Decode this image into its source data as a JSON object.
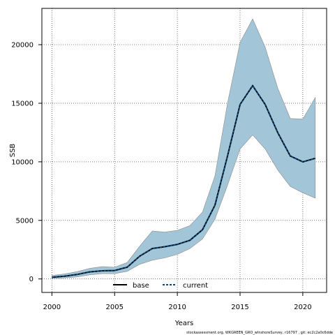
{
  "chart_data": {
    "type": "area",
    "xlabel": "Years",
    "ylabel": "SSB",
    "xlim": [
      1999.2,
      2021.9
    ],
    "ylim": [
      -1150,
      23100
    ],
    "x_ticks": [
      2000,
      2005,
      2010,
      2015,
      2020
    ],
    "y_ticks": [
      0,
      5000,
      10000,
      15000,
      20000
    ],
    "grid": true,
    "legend_position": "bottom-center",
    "x": [
      2000,
      2001,
      2002,
      2003,
      2004,
      2005,
      2006,
      2007,
      2008,
      2009,
      2010,
      2011,
      2012,
      2013,
      2014,
      2015,
      2016,
      2017,
      2018,
      2019,
      2020,
      2021
    ],
    "band": {
      "upper": [
        300,
        420,
        620,
        900,
        1050,
        1000,
        1400,
        2800,
        4100,
        4000,
        4150,
        4550,
        5700,
        8800,
        15000,
        20200,
        22200,
        19800,
        16300,
        13700,
        13650,
        15500
      ],
      "lower": [
        60,
        90,
        170,
        350,
        450,
        450,
        650,
        1250,
        1600,
        1800,
        2100,
        2600,
        3400,
        5100,
        8000,
        11100,
        12300,
        11100,
        9300,
        7900,
        7350,
        6900
      ]
    },
    "series": [
      {
        "name": "base",
        "values": [
          150,
          230,
          380,
          600,
          700,
          720,
          1000,
          1950,
          2600,
          2750,
          2950,
          3300,
          4200,
          6300,
          10500,
          14900,
          16500,
          14900,
          12500,
          10500,
          10000,
          10300
        ]
      },
      {
        "name": "current",
        "values": [
          150,
          230,
          380,
          600,
          700,
          720,
          1000,
          1950,
          2600,
          2750,
          2950,
          3300,
          4200,
          6300,
          10500,
          14900,
          16500,
          14900,
          12500,
          10500,
          10000,
          10300
        ]
      }
    ],
    "colors": {
      "band": "#a3c5d8",
      "band_edge": "#8a8a8a",
      "base": "#000000",
      "current": "#0a4a7a"
    }
  },
  "footer": "stockassessment.org, WKGREEN_GRO_wInshoreSurvey, r16797 , git: ec2c2a0c6dde"
}
